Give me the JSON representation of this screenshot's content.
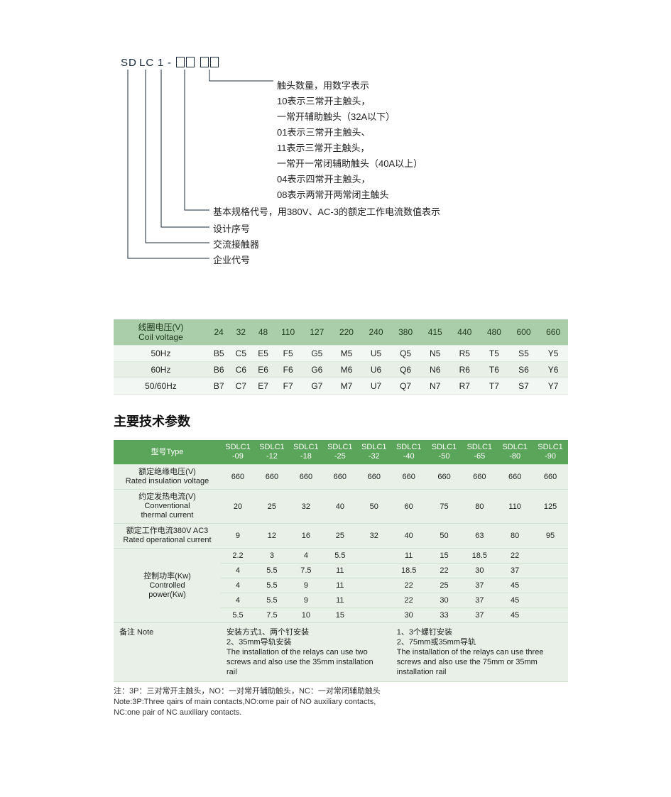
{
  "diagram": {
    "code_parts": [
      "SD",
      "LC",
      "1",
      "-"
    ],
    "right_lines": [
      "触头数量，用数字表示",
      "10表示三常开主触头，",
      "一常开辅助触头（32A以下）",
      "01表示三常开主触头、",
      "11表示三常开主触头，",
      "一常开一常闭辅助触头（40A以上）",
      "04表示四常开主触头，",
      "08表示两常开两常闭主触头"
    ],
    "lower_lines": [
      "基本规格代号，用380V、AC-3的额定工作电流数值表示",
      "设计序号",
      "交流接触器",
      "企业代号"
    ]
  },
  "coil": {
    "header_cn": "线圈电压(V)",
    "header_en": "Coil voltage",
    "voltages": [
      "24",
      "32",
      "48",
      "110",
      "127",
      "220",
      "240",
      "380",
      "415",
      "440",
      "480",
      "600",
      "660"
    ],
    "rows": [
      {
        "label": "50Hz",
        "cells": [
          "B5",
          "C5",
          "E5",
          "F5",
          "G5",
          "M5",
          "U5",
          "Q5",
          "N5",
          "R5",
          "T5",
          "S5",
          "Y5"
        ]
      },
      {
        "label": "60Hz",
        "cells": [
          "B6",
          "C6",
          "E6",
          "F6",
          "G6",
          "M6",
          "U6",
          "Q6",
          "N6",
          "R6",
          "T6",
          "S6",
          "Y6"
        ]
      },
      {
        "label": "50/60Hz",
        "cells": [
          "B7",
          "C7",
          "E7",
          "F7",
          "G7",
          "M7",
          "U7",
          "Q7",
          "N7",
          "R7",
          "T7",
          "S7",
          "Y7"
        ]
      }
    ]
  },
  "heading": "主要技术参数",
  "spec": {
    "type_label": "型号Type",
    "models": [
      "SDLC1\n-09",
      "SDLC1\n-12",
      "SDLC1\n-18",
      "SDLC1\n-25",
      "SDLC1\n-32",
      "SDLC1\n-40",
      "SDLC1\n-50",
      "SDLC1\n-65",
      "SDLC1\n-80",
      "SDLC1\n-90"
    ],
    "rows": [
      {
        "label": "额定绝缘电压(V)\nRated insulation voltage",
        "cells": [
          "660",
          "660",
          "660",
          "660",
          "660",
          "660",
          "660",
          "660",
          "660",
          "660"
        ]
      },
      {
        "label": "约定发热电流(V)\nConventional\nthermal current",
        "cells": [
          "20",
          "25",
          "32",
          "40",
          "50",
          "60",
          "75",
          "80",
          "110",
          "125"
        ]
      },
      {
        "label": "额定工作电流380V AC3\nRated operational current",
        "cells": [
          "9",
          "12",
          "16",
          "25",
          "32",
          "40",
          "50",
          "63",
          "80",
          "95"
        ]
      }
    ],
    "power_label": "控制功率(Kw)\nControlled\npower(Kw)",
    "power_rows": [
      [
        "2.2",
        "3",
        "4",
        "5.5",
        "",
        "11",
        "15",
        "18.5",
        "22",
        ""
      ],
      [
        "4",
        "5.5",
        "7.5",
        "11",
        "",
        "18.5",
        "22",
        "30",
        "37",
        ""
      ],
      [
        "4",
        "5.5",
        "9",
        "11",
        "",
        "22",
        "25",
        "37",
        "45",
        ""
      ],
      [
        "4",
        "5.5",
        "9",
        "11",
        "",
        "22",
        "30",
        "37",
        "45",
        ""
      ],
      [
        "5.5",
        "7.5",
        "10",
        "15",
        "",
        "30",
        "33",
        "37",
        "45",
        ""
      ]
    ],
    "note_label": "备注 Note",
    "note_left": "安装方式1、两个钉安装\n2、35mm导轨安装\nThe installation of the relays can use two screws and also use the 35mm installation rail",
    "note_right": "1、3个螺钉安装\n2、75mm或35mm导轨\nThe installation of the relays can use three screws and also use the 75mm or 35mm installation rail"
  },
  "footnotes": [
    "注：3P：三对常开主触头，NO：一对常开辅助触头，NC：一对常闭辅助触头",
    "Note:3P:Three qairs of main contacts,NO:ome pair of NO auxiliary contacts,",
    "NC:one pair of NC auxiliary contacts."
  ],
  "colors": {
    "coil_header_bg": "#aacdaa",
    "coil_row_even": "#e7efe7",
    "coil_row_odd": "#f3f7f3",
    "spec_header_bg": "#5aa55a",
    "spec_body_bg": "#e8f0e8"
  }
}
